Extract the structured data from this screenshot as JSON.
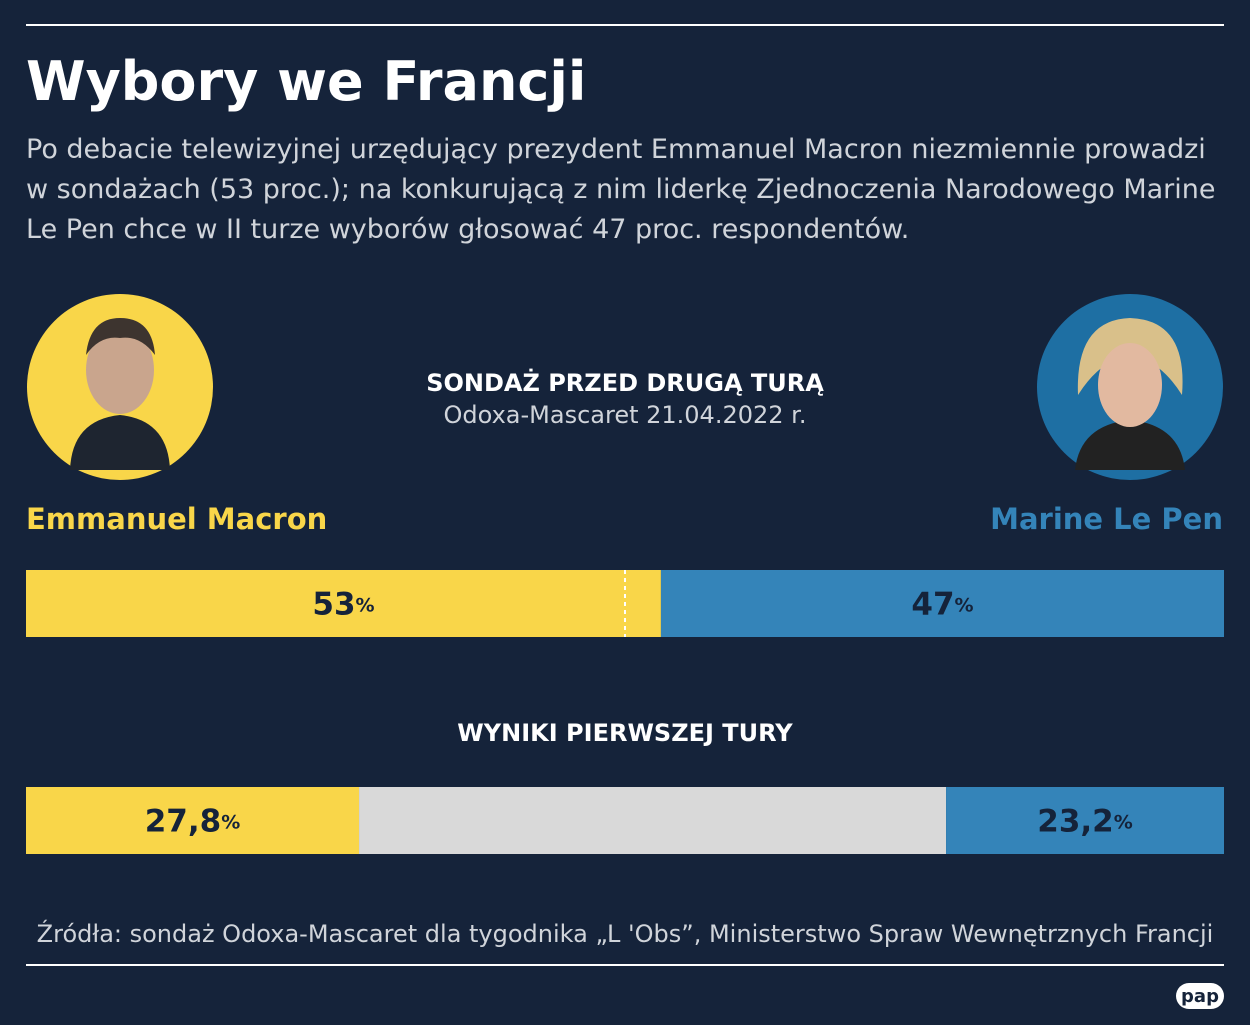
{
  "title": "Wybory we Francji",
  "subtitle": "Po debacie telewizyjnej urzędujący prezydent Emmanuel Macron niezmiennie prowadzi w sondażach (53 proc.); na konkurującą z nim liderkę Zjednoczenia Narodowego Marine Le Pen chce w II turze wyborów głosować 47 proc. respondentów.",
  "chart_data": [
    {
      "type": "stacked-bar",
      "title": "SONDAŻ PRZED DRUGĄ TURĄ",
      "subtitle": "Odoxa-Mascaret 21.04.2022 r.",
      "xlim": [
        0,
        100
      ],
      "reference_line": 50,
      "series": [
        {
          "name": "Emmanuel Macron",
          "color": "#f9d649",
          "values": [
            53
          ],
          "value_labels": [
            "53%"
          ]
        },
        {
          "name": "Marine Le Pen",
          "color": "#3484b9",
          "values": [
            47
          ],
          "value_labels": [
            "47%"
          ]
        }
      ]
    },
    {
      "type": "stacked-bar",
      "title": "WYNIKI PIERWSZEJ TURY",
      "xlim": [
        0,
        100
      ],
      "series": [
        {
          "color": "#f9d649",
          "values": [
            27.8
          ],
          "value_labels": [
            "27,8%"
          ]
        },
        {
          "color": "#d9d9d9",
          "values": [
            49
          ]
        },
        {
          "color": "#3484b9",
          "values": [
            23.2
          ],
          "value_labels": [
            "23,2%"
          ]
        }
      ]
    }
  ],
  "source": "Źródła: sondaż Odoxa-Mascaret dla tygodnika „L 'Obs”, Ministerstwo Spraw Wewnętrznych Francji",
  "logo": "pap"
}
